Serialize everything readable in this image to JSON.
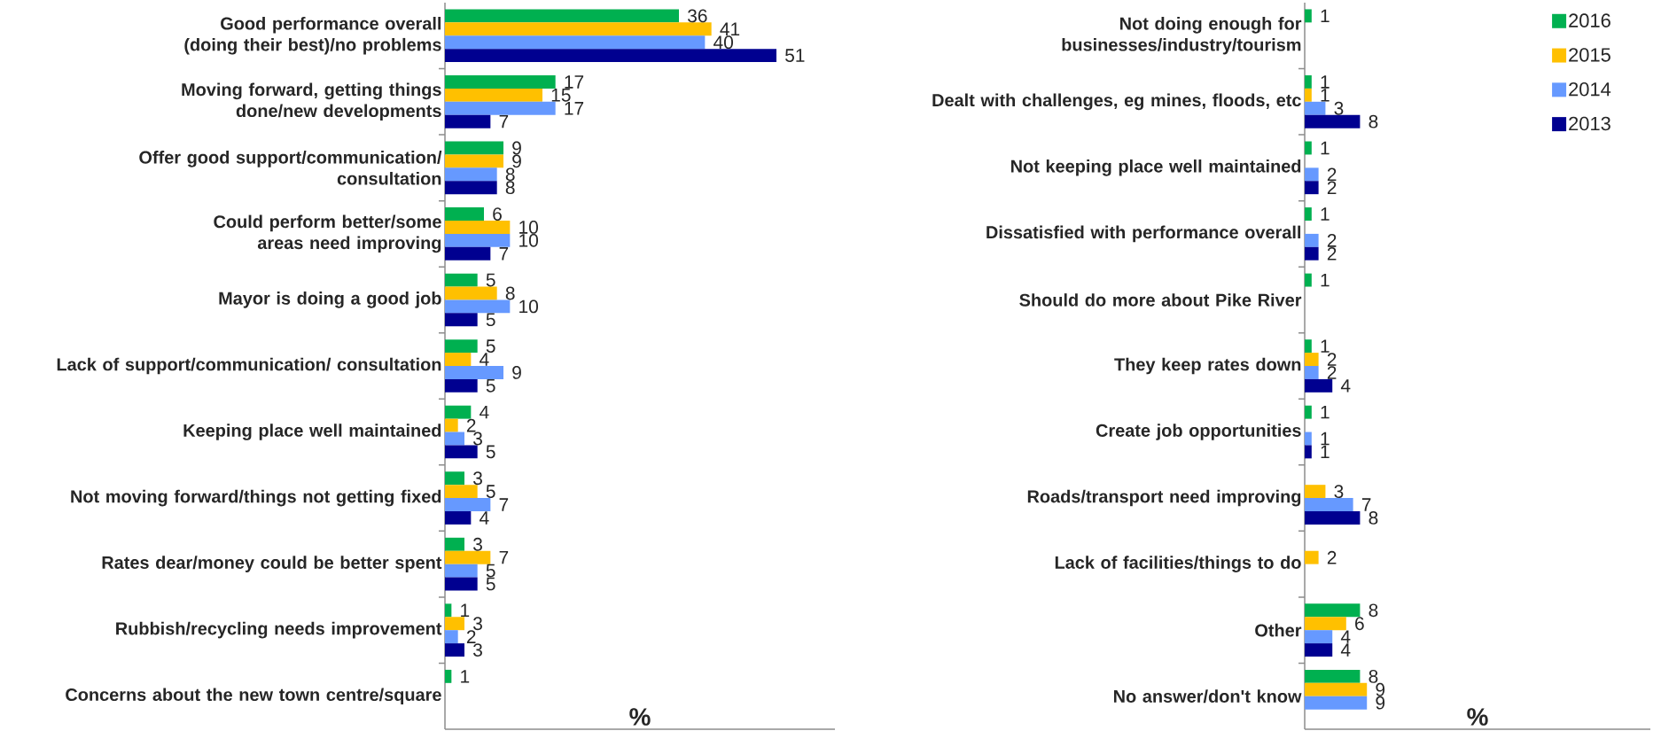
{
  "chart_data": [
    {
      "type": "bar",
      "orientation": "horizontal",
      "xlabel": "%",
      "xlim": [
        0,
        60
      ],
      "tick_labels": "y",
      "data_labels": true,
      "legend": false,
      "categories": [
        "Good performance overall (doing their best)/no problems",
        "Moving forward, getting things done/new developments",
        "Offer good support/communication/ consultation",
        "Could perform better/some areas need improving",
        "Mayor is doing a good job",
        "Lack of support/communication/ consultation",
        "Keeping place well maintained",
        "Not moving forward/things not getting fixed",
        "Rates dear/money could be better spent",
        "Rubbish/recycling needs improvement",
        "Concerns about the new town centre/square"
      ],
      "series": [
        {
          "color": "#00b050",
          "values": [
            36,
            17,
            9,
            6,
            5,
            5,
            4,
            3,
            3,
            1,
            1
          ]
        },
        {
          "color": "#ffc000",
          "values": [
            41,
            15,
            9,
            10,
            8,
            4,
            2,
            5,
            7,
            3,
            null
          ]
        },
        {
          "color": "#6699ff",
          "values": [
            40,
            17,
            8,
            10,
            10,
            9,
            3,
            7,
            5,
            2,
            null
          ]
        },
        {
          "color": "#000090",
          "values": [
            51,
            7,
            8,
            7,
            5,
            5,
            5,
            4,
            5,
            3,
            null
          ]
        }
      ]
    },
    {
      "type": "bar",
      "orientation": "horizontal",
      "xlabel": "%",
      "xlim": [
        0,
        50
      ],
      "tick_labels": "y",
      "data_labels": true,
      "legend": "top right",
      "categories": [
        "Not doing enough for businesses/industry/tourism",
        "Dealt with challenges, eg mines, floods, etc",
        "Not keeping place well maintained",
        "Dissatisfied with performance overall",
        "Should do more about Pike River",
        "They keep rates down",
        "Create job opportunities",
        "Roads/transport need improving",
        "Lack of facilities/things to do",
        "Other",
        "No answer/don't know"
      ],
      "series": [
        {
          "name": "2016",
          "color": "#00b050",
          "values": [
            1,
            1,
            1,
            1,
            1,
            1,
            1,
            null,
            null,
            8,
            8
          ]
        },
        {
          "name": "2015",
          "color": "#ffc000",
          "values": [
            null,
            1,
            null,
            null,
            null,
            2,
            null,
            3,
            2,
            6,
            9
          ]
        },
        {
          "name": "2014",
          "color": "#6699ff",
          "values": [
            null,
            3,
            2,
            2,
            null,
            2,
            1,
            7,
            null,
            4,
            9
          ]
        },
        {
          "name": "2013",
          "color": "#000090",
          "values": [
            null,
            8,
            2,
            2,
            null,
            4,
            1,
            8,
            null,
            4,
            null
          ]
        }
      ]
    }
  ]
}
